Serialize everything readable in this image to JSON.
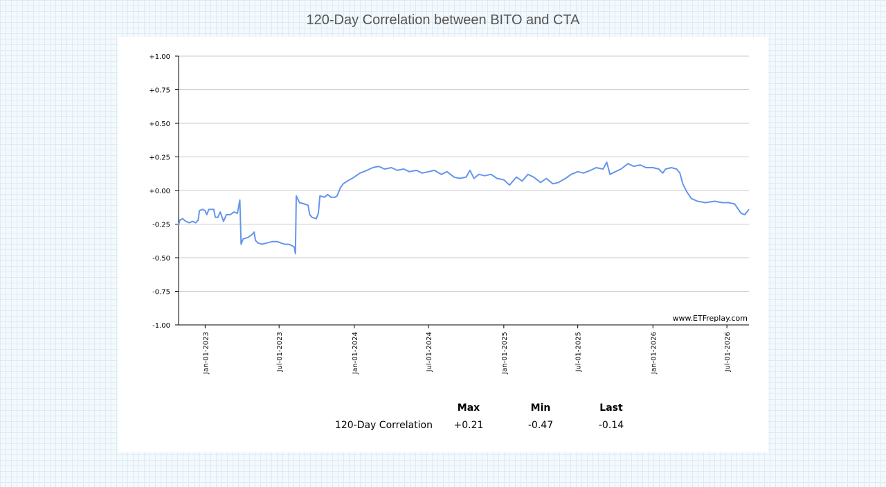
{
  "title": "120-Day Correlation between BITO and CTA",
  "watermark": "www.ETFreplay.com",
  "stats": {
    "headers": {
      "max": "Max",
      "min": "Min",
      "last": "Last"
    },
    "row_label": "120-Day Correlation",
    "max": "+0.21",
    "min": "-0.47",
    "last": "-0.14"
  },
  "chart_data": {
    "type": "line",
    "title": "120-Day Correlation between BITO and CTA",
    "xlabel": "",
    "ylabel": "",
    "ylim": [
      -1.0,
      1.0
    ],
    "xlim": [
      "2022-10-28",
      "2026-08-24"
    ],
    "grid": "horizontal",
    "line_color": "#6495ed",
    "y_ticks": [
      {
        "value": 1.0,
        "label": "+1.00"
      },
      {
        "value": 0.75,
        "label": "+0.75"
      },
      {
        "value": 0.5,
        "label": "+0.50"
      },
      {
        "value": 0.25,
        "label": "+0.25"
      },
      {
        "value": 0.0,
        "label": "+0.00"
      },
      {
        "value": -0.25,
        "label": "-0.25"
      },
      {
        "value": -0.5,
        "label": "-0.50"
      },
      {
        "value": -0.75,
        "label": "-0.75"
      },
      {
        "value": -1.0,
        "label": "-1.00"
      }
    ],
    "x_ticks": [
      {
        "date": "2023-01-01",
        "label": "Jan-01-2023"
      },
      {
        "date": "2023-07-01",
        "label": "Jul-01-2023"
      },
      {
        "date": "2024-01-01",
        "label": "Jan-01-2024"
      },
      {
        "date": "2024-07-01",
        "label": "Jul-01-2024"
      },
      {
        "date": "2025-01-01",
        "label": "Jan-01-2025"
      },
      {
        "date": "2025-07-01",
        "label": "Jul-01-2025"
      },
      {
        "date": "2026-01-01",
        "label": "Jan-01-2026"
      },
      {
        "date": "2026-07-01",
        "label": "Jul-01-2026"
      }
    ],
    "series": [
      {
        "name": "120-Day Correlation",
        "points": [
          [
            "2022-10-28",
            -0.26
          ],
          [
            "2022-10-31",
            -0.22
          ],
          [
            "2022-11-07",
            -0.21
          ],
          [
            "2022-11-15",
            -0.23
          ],
          [
            "2022-11-23",
            -0.24
          ],
          [
            "2022-12-01",
            -0.23
          ],
          [
            "2022-12-09",
            -0.24
          ],
          [
            "2022-12-15",
            -0.22
          ],
          [
            "2022-12-18",
            -0.15
          ],
          [
            "2022-12-25",
            -0.14
          ],
          [
            "2023-01-01",
            -0.15
          ],
          [
            "2023-01-05",
            -0.18
          ],
          [
            "2023-01-10",
            -0.14
          ],
          [
            "2023-01-22",
            -0.14
          ],
          [
            "2023-01-26",
            -0.2
          ],
          [
            "2023-02-01",
            -0.2
          ],
          [
            "2023-02-07",
            -0.16
          ],
          [
            "2023-02-15",
            -0.23
          ],
          [
            "2023-02-22",
            -0.18
          ],
          [
            "2023-03-03",
            -0.18
          ],
          [
            "2023-03-13",
            -0.16
          ],
          [
            "2023-03-21",
            -0.17
          ],
          [
            "2023-03-27",
            -0.07
          ],
          [
            "2023-03-30",
            -0.4
          ],
          [
            "2023-04-04",
            -0.36
          ],
          [
            "2023-04-15",
            -0.35
          ],
          [
            "2023-04-25",
            -0.33
          ],
          [
            "2023-05-01",
            -0.31
          ],
          [
            "2023-05-04",
            -0.37
          ],
          [
            "2023-05-10",
            -0.39
          ],
          [
            "2023-05-20",
            -0.4
          ],
          [
            "2023-06-01",
            -0.39
          ],
          [
            "2023-06-15",
            -0.38
          ],
          [
            "2023-06-27",
            -0.38
          ],
          [
            "2023-07-05",
            -0.39
          ],
          [
            "2023-07-15",
            -0.4
          ],
          [
            "2023-07-25",
            -0.4
          ],
          [
            "2023-08-01",
            -0.41
          ],
          [
            "2023-08-07",
            -0.42
          ],
          [
            "2023-08-10",
            -0.47
          ],
          [
            "2023-08-12",
            -0.04
          ],
          [
            "2023-08-20",
            -0.09
          ],
          [
            "2023-09-01",
            -0.1
          ],
          [
            "2023-09-10",
            -0.11
          ],
          [
            "2023-09-14",
            -0.18
          ],
          [
            "2023-09-20",
            -0.2
          ],
          [
            "2023-09-30",
            -0.21
          ],
          [
            "2023-10-05",
            -0.17
          ],
          [
            "2023-10-09",
            -0.04
          ],
          [
            "2023-10-20",
            -0.05
          ],
          [
            "2023-10-28",
            -0.03
          ],
          [
            "2023-11-05",
            -0.05
          ],
          [
            "2023-11-15",
            -0.05
          ],
          [
            "2023-11-20",
            -0.04
          ],
          [
            "2023-11-28",
            0.02
          ],
          [
            "2023-12-05",
            0.05
          ],
          [
            "2023-12-15",
            0.07
          ],
          [
            "2024-01-01",
            0.1
          ],
          [
            "2024-01-15",
            0.13
          ],
          [
            "2024-02-01",
            0.15
          ],
          [
            "2024-02-15",
            0.17
          ],
          [
            "2024-03-01",
            0.18
          ],
          [
            "2024-03-15",
            0.16
          ],
          [
            "2024-04-01",
            0.17
          ],
          [
            "2024-04-15",
            0.15
          ],
          [
            "2024-05-01",
            0.16
          ],
          [
            "2024-05-15",
            0.14
          ],
          [
            "2024-06-01",
            0.15
          ],
          [
            "2024-06-15",
            0.13
          ],
          [
            "2024-07-01",
            0.14
          ],
          [
            "2024-07-15",
            0.15
          ],
          [
            "2024-08-01",
            0.12
          ],
          [
            "2024-08-15",
            0.14
          ],
          [
            "2024-09-01",
            0.1
          ],
          [
            "2024-09-15",
            0.09
          ],
          [
            "2024-10-01",
            0.1
          ],
          [
            "2024-10-10",
            0.15
          ],
          [
            "2024-10-20",
            0.09
          ],
          [
            "2024-11-01",
            0.12
          ],
          [
            "2024-11-15",
            0.11
          ],
          [
            "2024-12-01",
            0.12
          ],
          [
            "2024-12-15",
            0.09
          ],
          [
            "2025-01-01",
            0.08
          ],
          [
            "2025-01-15",
            0.04
          ],
          [
            "2025-02-01",
            0.1
          ],
          [
            "2025-02-15",
            0.07
          ],
          [
            "2025-03-01",
            0.12
          ],
          [
            "2025-03-15",
            0.1
          ],
          [
            "2025-04-01",
            0.06
          ],
          [
            "2025-04-15",
            0.09
          ],
          [
            "2025-05-01",
            0.05
          ],
          [
            "2025-05-15",
            0.06
          ],
          [
            "2025-06-01",
            0.09
          ],
          [
            "2025-06-15",
            0.12
          ],
          [
            "2025-07-01",
            0.14
          ],
          [
            "2025-07-15",
            0.13
          ],
          [
            "2025-08-01",
            0.15
          ],
          [
            "2025-08-15",
            0.17
          ],
          [
            "2025-09-01",
            0.16
          ],
          [
            "2025-09-10",
            0.21
          ],
          [
            "2025-09-18",
            0.12
          ],
          [
            "2025-10-01",
            0.14
          ],
          [
            "2025-10-15",
            0.16
          ],
          [
            "2025-11-01",
            0.2
          ],
          [
            "2025-11-15",
            0.18
          ],
          [
            "2025-12-01",
            0.19
          ],
          [
            "2025-12-15",
            0.17
          ],
          [
            "2026-01-01",
            0.17
          ],
          [
            "2026-01-15",
            0.16
          ],
          [
            "2026-01-25",
            0.13
          ],
          [
            "2026-02-01",
            0.16
          ],
          [
            "2026-02-15",
            0.17
          ],
          [
            "2026-02-28",
            0.16
          ],
          [
            "2026-03-08",
            0.13
          ],
          [
            "2026-03-15",
            0.05
          ],
          [
            "2026-03-25",
            -0.01
          ],
          [
            "2026-04-05",
            -0.06
          ],
          [
            "2026-04-20",
            -0.08
          ],
          [
            "2026-05-10",
            -0.09
          ],
          [
            "2026-06-01",
            -0.08
          ],
          [
            "2026-06-20",
            -0.09
          ],
          [
            "2026-07-05",
            -0.09
          ],
          [
            "2026-07-20",
            -0.1
          ],
          [
            "2026-08-05",
            -0.17
          ],
          [
            "2026-08-14",
            -0.18
          ],
          [
            "2026-08-24",
            -0.14
          ]
        ]
      }
    ]
  }
}
